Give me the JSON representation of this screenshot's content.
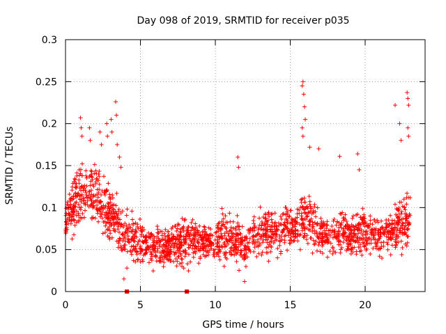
{
  "chart_data": {
    "type": "scatter",
    "title": "Day 098 of 2019, SRMTID for receiver p035",
    "xlabel": "GPS time / hours",
    "ylabel": "SRMTID / TECUs",
    "xlim": [
      0,
      24
    ],
    "ylim": [
      0,
      0.3
    ],
    "xticks": [
      0,
      5,
      10,
      15,
      20
    ],
    "xtick_labels": [
      "0",
      "5",
      "10",
      "15",
      "20"
    ],
    "yticks": [
      0,
      0.05,
      0.1,
      0.15,
      0.2,
      0.25,
      0.3
    ],
    "ytick_labels": [
      "0",
      "0.05",
      "0.1",
      "0.15",
      "0.2",
      "0.25",
      "0.3"
    ],
    "grid": true,
    "marker": "+",
    "color": "#ff0000",
    "series": [
      {
        "name": "SRMTID",
        "envelope": {
          "x": [
            0,
            0.5,
            1,
            1.5,
            2,
            2.5,
            3,
            3.5,
            4,
            4.5,
            5,
            5.5,
            6,
            6.5,
            7,
            7.5,
            8,
            8.5,
            9,
            9.5,
            10,
            10.5,
            11,
            11.5,
            12,
            12.5,
            13,
            13.5,
            14,
            14.5,
            15,
            15.5,
            16,
            16.5,
            17,
            17.5,
            18,
            18.5,
            19,
            19.5,
            20,
            20.5,
            21,
            21.5,
            22,
            22.5,
            23
          ],
          "center": [
            0.085,
            0.1,
            0.11,
            0.12,
            0.115,
            0.1,
            0.09,
            0.08,
            0.07,
            0.065,
            0.06,
            0.055,
            0.055,
            0.05,
            0.055,
            0.06,
            0.06,
            0.065,
            0.06,
            0.06,
            0.06,
            0.065,
            0.065,
            0.06,
            0.05,
            0.065,
            0.07,
            0.07,
            0.07,
            0.075,
            0.075,
            0.08,
            0.09,
            0.08,
            0.07,
            0.065,
            0.07,
            0.07,
            0.065,
            0.07,
            0.07,
            0.07,
            0.065,
            0.07,
            0.075,
            0.08,
            0.09
          ],
          "spread": [
            0.02,
            0.03,
            0.035,
            0.035,
            0.035,
            0.035,
            0.03,
            0.03,
            0.025,
            0.025,
            0.025,
            0.02,
            0.02,
            0.02,
            0.02,
            0.025,
            0.025,
            0.025,
            0.02,
            0.02,
            0.02,
            0.025,
            0.025,
            0.025,
            0.02,
            0.025,
            0.025,
            0.025,
            0.025,
            0.025,
            0.02,
            0.025,
            0.03,
            0.025,
            0.02,
            0.02,
            0.025,
            0.025,
            0.02,
            0.025,
            0.025,
            0.02,
            0.02,
            0.025,
            0.025,
            0.03,
            0.03
          ]
        },
        "spikes": [
          {
            "x": 1.0,
            "y": 0.207
          },
          {
            "x": 1.05,
            "y": 0.195
          },
          {
            "x": 1.1,
            "y": 0.185
          },
          {
            "x": 1.6,
            "y": 0.195
          },
          {
            "x": 1.65,
            "y": 0.18
          },
          {
            "x": 2.3,
            "y": 0.19
          },
          {
            "x": 2.4,
            "y": 0.175
          },
          {
            "x": 2.75,
            "y": 0.2
          },
          {
            "x": 2.8,
            "y": 0.185
          },
          {
            "x": 3.05,
            "y": 0.205
          },
          {
            "x": 3.1,
            "y": 0.19
          },
          {
            "x": 3.35,
            "y": 0.226
          },
          {
            "x": 3.4,
            "y": 0.21
          },
          {
            "x": 3.45,
            "y": 0.175
          },
          {
            "x": 3.6,
            "y": 0.16
          },
          {
            "x": 3.7,
            "y": 0.148
          },
          {
            "x": 3.9,
            "y": 0.015
          },
          {
            "x": 4.1,
            "y": 0.028
          },
          {
            "x": 11.5,
            "y": 0.16
          },
          {
            "x": 11.55,
            "y": 0.148
          },
          {
            "x": 11.95,
            "y": 0.012
          },
          {
            "x": 15.8,
            "y": 0.245
          },
          {
            "x": 15.85,
            "y": 0.25
          },
          {
            "x": 15.9,
            "y": 0.235
          },
          {
            "x": 15.95,
            "y": 0.22
          },
          {
            "x": 16.0,
            "y": 0.205
          },
          {
            "x": 15.8,
            "y": 0.195
          },
          {
            "x": 15.85,
            "y": 0.185
          },
          {
            "x": 16.3,
            "y": 0.172
          },
          {
            "x": 16.9,
            "y": 0.17
          },
          {
            "x": 18.3,
            "y": 0.161
          },
          {
            "x": 19.5,
            "y": 0.164
          },
          {
            "x": 19.6,
            "y": 0.145
          },
          {
            "x": 22.0,
            "y": 0.222
          },
          {
            "x": 22.3,
            "y": 0.2
          },
          {
            "x": 22.4,
            "y": 0.18
          },
          {
            "x": 22.8,
            "y": 0.237
          },
          {
            "x": 22.85,
            "y": 0.23
          },
          {
            "x": 22.9,
            "y": 0.222
          },
          {
            "x": 22.85,
            "y": 0.195
          },
          {
            "x": 22.9,
            "y": 0.185
          }
        ],
        "zero_points": [
          {
            "x": 4.1,
            "y": 0.0
          },
          {
            "x": 8.1,
            "y": 0.0
          }
        ],
        "approx_point_count": 2000
      }
    ]
  }
}
